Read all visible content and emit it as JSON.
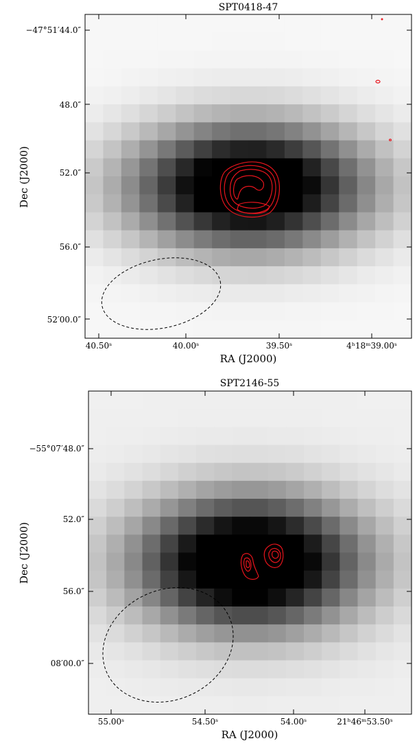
{
  "chart_data": [
    {
      "type": "heatmap",
      "title": "SPT0418-47",
      "xlabel": "RA (J2000)",
      "ylabel": "Dec (J2000)",
      "xticks": [
        "40.50ˢ",
        "40.00ˢ",
        "39.50ˢ",
        "4ʰ18ᵐ39.00ˢ"
      ],
      "yticks": [
        "−47°51′44.0″",
        "48.0″",
        "52.0″",
        "56.0″",
        "52′00.0″"
      ],
      "colormap": "grayscale (white = low, black = high)",
      "contour_color": "#e8141c",
      "beam": "dashed ellipse, lower-left",
      "grid": false
    },
    {
      "type": "heatmap",
      "title": "SPT2146-55",
      "xlabel": "RA (J2000)",
      "ylabel": "Dec (J2000)",
      "xticks": [
        "55.00ˢ",
        "54.50ˢ",
        "54.00ˢ",
        "21ʰ46ᵐ53.50ˢ"
      ],
      "yticks": [
        "−55°07′48.0″",
        "52.0″",
        "56.0″",
        "08′00.0″"
      ],
      "colormap": "grayscale (white = low, black = high)",
      "contour_color": "#e8141c",
      "beam": "dashed ellipse, lower-left",
      "grid": false
    }
  ]
}
